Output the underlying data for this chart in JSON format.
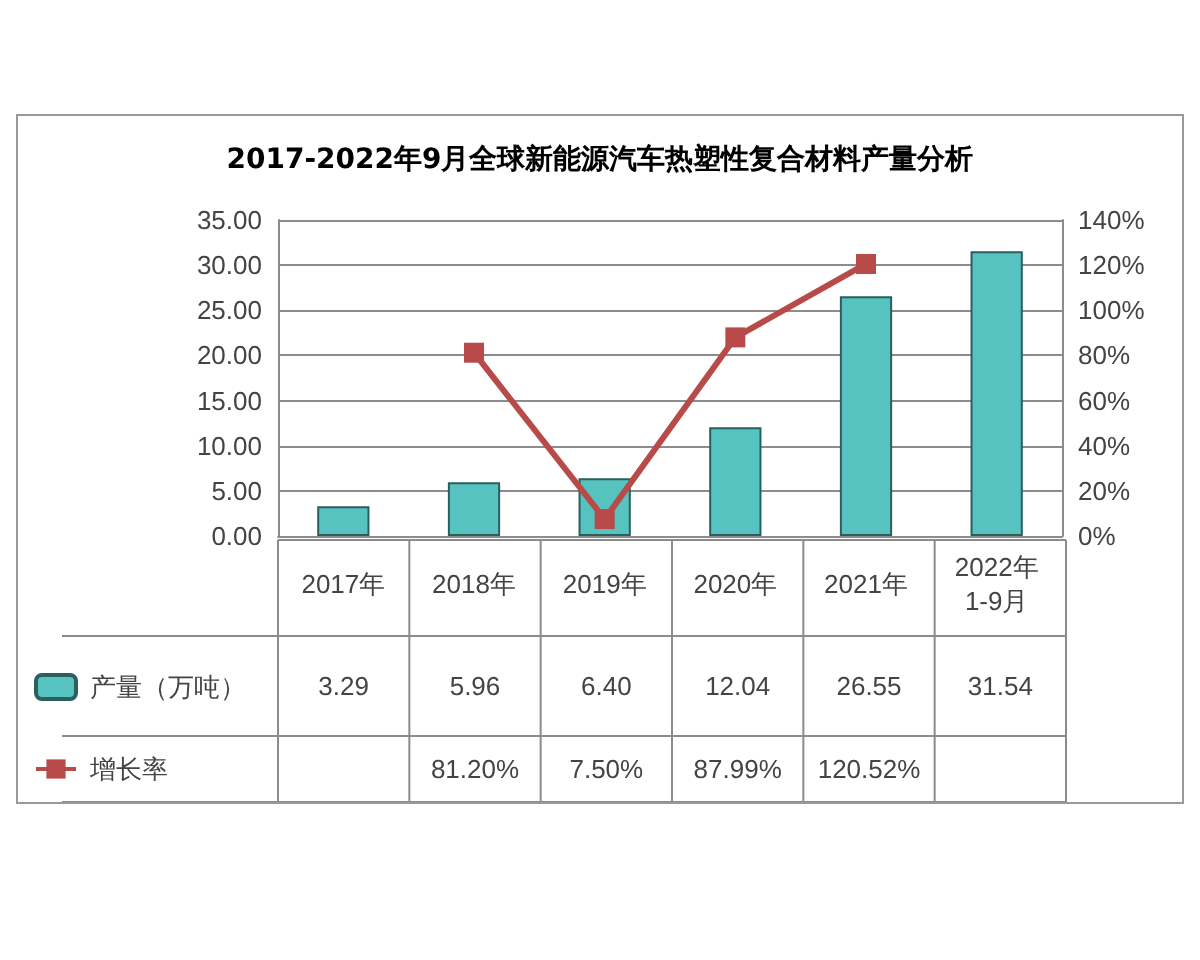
{
  "chart_data": {
    "type": "bar",
    "title": "2017-2022年9月全球新能源汽车热塑性复合材料产量分析",
    "categories": [
      "2017年",
      "2018年",
      "2019年",
      "2020年",
      "2021年",
      "2022年\n1-9月"
    ],
    "series": [
      {
        "name": "产量（万吨）",
        "color": "#56c3c1",
        "values": [
          3.29,
          5.96,
          6.4,
          12.04,
          26.55,
          31.54
        ],
        "value_labels": [
          "3.29",
          "5.96",
          "6.40",
          "12.04",
          "26.55",
          "31.54"
        ]
      },
      {
        "name": "增长率",
        "type": "line",
        "axis": "y2",
        "marker": "square",
        "color": "#b84b49",
        "values": [
          null,
          81.2,
          7.5,
          87.99,
          120.52,
          null
        ],
        "value_labels": [
          null,
          "81.20%",
          "7.50%",
          "87.99%",
          "120.52%",
          null
        ]
      }
    ],
    "ylim": [
      0,
      35
    ],
    "yticks": [
      {
        "value": 0,
        "label": "0.00"
      },
      {
        "value": 5,
        "label": "5.00"
      },
      {
        "value": 10,
        "label": "10.00"
      },
      {
        "value": 15,
        "label": "15.00"
      },
      {
        "value": 20,
        "label": "20.00"
      },
      {
        "value": 25,
        "label": "25.00"
      },
      {
        "value": 30,
        "label": "30.00"
      },
      {
        "value": 35,
        "label": "35.00"
      }
    ],
    "y2lim": [
      0,
      140
    ],
    "y2ticks": [
      {
        "value": 0,
        "label": "0%"
      },
      {
        "value": 20,
        "label": "20%"
      },
      {
        "value": 40,
        "label": "40%"
      },
      {
        "value": 60,
        "label": "60%"
      },
      {
        "value": 80,
        "label": "80%"
      },
      {
        "value": 100,
        "label": "100%"
      },
      {
        "value": 120,
        "label": "120%"
      },
      {
        "value": 140,
        "label": "140%"
      }
    ],
    "grid": "y",
    "legend": "bottom left"
  }
}
